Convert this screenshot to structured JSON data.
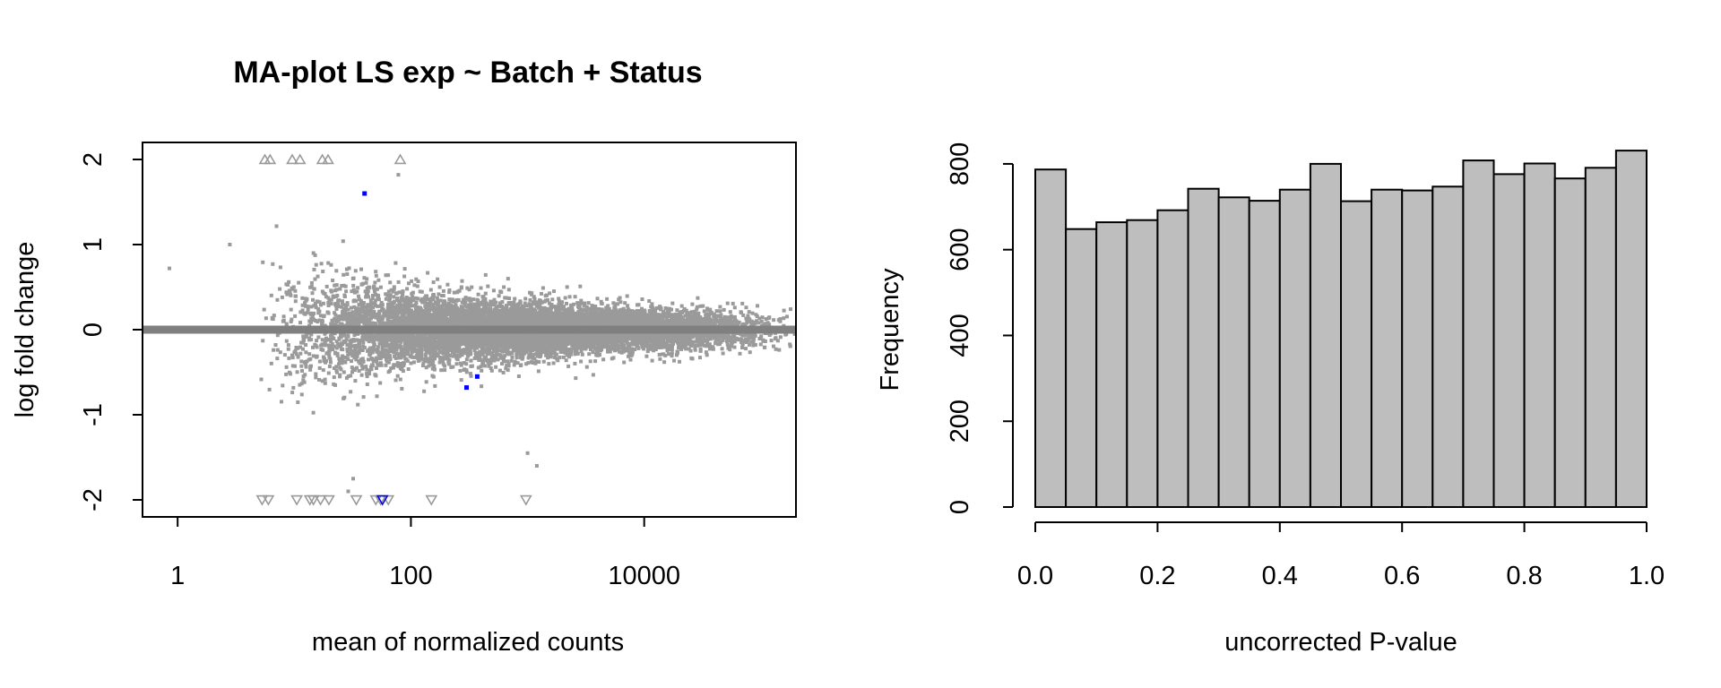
{
  "chart_data": [
    {
      "type": "scatter",
      "title": "MA-plot LS exp ~ Batch + Status",
      "xlabel": "mean of normalized counts",
      "ylabel": "log fold change",
      "x_scale": "log10",
      "xlim": [
        0.5,
        200000
      ],
      "ylim": [
        -2.2,
        2.2
      ],
      "x_ticks": [
        1,
        100,
        10000
      ],
      "x_tick_labels": [
        "1",
        "100",
        "10000"
      ],
      "y_ticks": [
        -2,
        -1,
        0,
        1,
        2
      ],
      "y_tick_labels": [
        "-2",
        "-1",
        "0",
        "1",
        "2"
      ],
      "reference_line_y": 0,
      "colors": {
        "point": "#9a9a9a",
        "significant": "#0000ff",
        "reference_line": "#808080",
        "outlier_marker": "#999999"
      },
      "series": [
        {
          "name": "significant",
          "points": [
            [
              40,
              1.6
            ],
            [
              300,
              -0.68
            ],
            [
              370,
              -0.55
            ]
          ]
        },
        {
          "name": "clipped_above",
          "marker": "triangle-up",
          "y": 2,
          "x": [
            5.6,
            6.2,
            9.6,
            11.2,
            17.4,
            19.5,
            81
          ]
        },
        {
          "name": "clipped_below",
          "marker": "triangle-down",
          "y": -2,
          "x": [
            5.3,
            6.0,
            10.5,
            13.6,
            14.6,
            16.8,
            19.8,
            34,
            50,
            55,
            64,
            150,
            970
          ]
        },
        {
          "name": "clipped_below_significant",
          "marker": "triangle-down",
          "y": -2,
          "x": [
            57
          ]
        },
        {
          "name": "isolated_points",
          "points": [
            [
              0.85,
              0.72
            ],
            [
              2.8,
              1.0
            ],
            [
              78,
              1.82
            ],
            [
              1000,
              -1.45
            ],
            [
              1200,
              -1.6
            ],
            [
              32,
              -1.75
            ],
            [
              29,
              -1.9
            ]
          ]
        }
      ],
      "bulk_distribution": {
        "x_range": [
          5,
          200000
        ],
        "x_peak": 1000,
        "count": 9000
      }
    },
    {
      "type": "bar",
      "title": "",
      "xlabel": "uncorrected P-value",
      "ylabel": "Frequency",
      "bin_edges": [
        0.0,
        0.05,
        0.1,
        0.15,
        0.2,
        0.25,
        0.3,
        0.35,
        0.4,
        0.45,
        0.5,
        0.55,
        0.6,
        0.65,
        0.7,
        0.75,
        0.8,
        0.85,
        0.9,
        0.95,
        1.0
      ],
      "values": [
        787,
        648,
        664,
        669,
        692,
        742,
        722,
        714,
        740,
        800,
        713,
        740,
        738,
        747,
        808,
        776,
        801,
        766,
        791,
        831
      ],
      "xlim": [
        0.0,
        1.0
      ],
      "ylim": [
        0,
        850
      ],
      "x_ticks": [
        0.0,
        0.2,
        0.4,
        0.6,
        0.8,
        1.0
      ],
      "x_tick_labels": [
        "0.0",
        "0.2",
        "0.4",
        "0.6",
        "0.8",
        "1.0"
      ],
      "y_ticks": [
        0,
        200,
        400,
        600,
        800
      ],
      "y_tick_labels": [
        "0",
        "200",
        "400",
        "600",
        "800"
      ],
      "colors": {
        "bar_fill": "#bebebe",
        "bar_stroke": "#000000"
      }
    }
  ]
}
